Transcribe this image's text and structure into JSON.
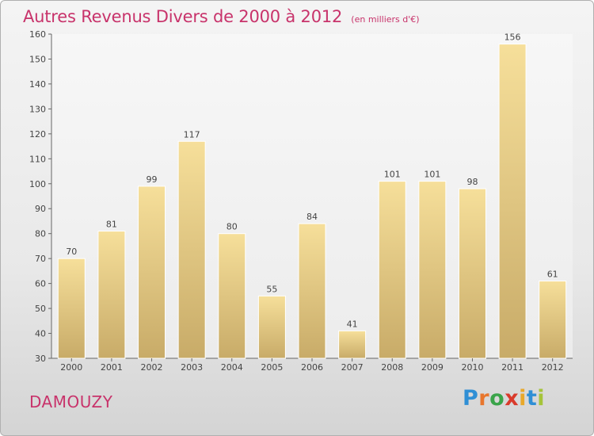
{
  "header": {
    "title": "Autres Revenus Divers de 2000 à 2012",
    "subtitle": "(en milliers d'€)"
  },
  "footer": {
    "commune": "DAMOUZY",
    "brand_letters": [
      "P",
      "r",
      "o",
      "x",
      "i",
      "t",
      "i"
    ],
    "brand_colors": [
      "#2f8fd5",
      "#e8762d",
      "#3aa44a",
      "#d93a2b",
      "#e8a82a",
      "#2f8fd5",
      "#a5c43a"
    ]
  },
  "chart_data": {
    "type": "bar",
    "title": "Autres Revenus Divers de 2000 à 2012",
    "subtitle": "(en milliers d'€)",
    "xlabel": "",
    "ylabel": "",
    "categories": [
      "2000",
      "2001",
      "2002",
      "2003",
      "2004",
      "2005",
      "2006",
      "2007",
      "2008",
      "2009",
      "2010",
      "2011",
      "2012"
    ],
    "values": [
      70,
      81,
      99,
      117,
      80,
      55,
      84,
      41,
      101,
      101,
      98,
      156,
      61
    ],
    "ylim": [
      30,
      160
    ],
    "yticks": [
      30,
      40,
      50,
      60,
      70,
      80,
      90,
      100,
      110,
      120,
      130,
      140,
      150,
      160
    ],
    "grid": false,
    "bar_color_top": "#f6df9a",
    "bar_color_bottom": "#c8ab68"
  }
}
